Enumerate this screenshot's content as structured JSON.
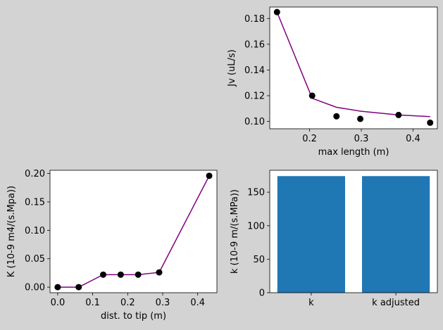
{
  "figure": {
    "background": "#d3d3d3"
  },
  "chart_data": [
    {
      "id": "top-right",
      "type": "line",
      "xlabel": "max length (m)",
      "ylabel": "Jv (uL/s)",
      "xlim": [
        0.123,
        0.447
      ],
      "ylim": [
        0.0943,
        0.1889
      ],
      "xticks": [
        0.2,
        0.3,
        0.4
      ],
      "xtick_labels": [
        "0.2",
        "0.3",
        "0.4"
      ],
      "yticks": [
        0.1,
        0.12,
        0.14,
        0.16,
        0.18
      ],
      "ytick_labels": [
        "0.10",
        "0.12",
        "0.14",
        "0.16",
        "0.18"
      ],
      "grid": false,
      "series": [
        {
          "kind": "scatter",
          "color": "#000000",
          "x": [
            0.137,
            0.205,
            0.252,
            0.298,
            0.372,
            0.433
          ],
          "y": [
            0.185,
            0.12,
            0.104,
            0.102,
            0.105,
            0.099
          ]
        },
        {
          "kind": "line",
          "color": "#800080",
          "x": [
            0.137,
            0.205,
            0.252,
            0.298,
            0.372,
            0.433
          ],
          "y": [
            0.185,
            0.118,
            0.111,
            0.108,
            0.105,
            0.1037
          ]
        }
      ]
    },
    {
      "id": "bottom-left",
      "type": "line",
      "xlabel": "dist. to tip (m)",
      "ylabel": "K (10-9 m4/(s.Mpa))",
      "xlim": [
        -0.022,
        0.455
      ],
      "ylim": [
        -0.0098,
        0.2057
      ],
      "xticks": [
        0.0,
        0.1,
        0.2,
        0.3,
        0.4
      ],
      "xtick_labels": [
        "0.0",
        "0.1",
        "0.2",
        "0.3",
        "0.4"
      ],
      "yticks": [
        0.0,
        0.05,
        0.1,
        0.15,
        0.2
      ],
      "ytick_labels": [
        "0.00",
        "0.05",
        "0.10",
        "0.15",
        "0.20"
      ],
      "grid": false,
      "series": [
        {
          "kind": "scatter",
          "color": "#000000",
          "x": [
            0.0,
            0.06,
            0.13,
            0.18,
            0.23,
            0.29,
            0.433
          ],
          "y": [
            0.0,
            0.0,
            0.022,
            0.022,
            0.022,
            0.026,
            0.196
          ]
        },
        {
          "kind": "line",
          "color": "#800080",
          "x": [
            0.0,
            0.06,
            0.13,
            0.18,
            0.23,
            0.29,
            0.433
          ],
          "y": [
            0.0,
            0.0,
            0.022,
            0.022,
            0.022,
            0.026,
            0.196
          ]
        }
      ]
    },
    {
      "id": "bottom-right",
      "type": "bar",
      "xlabel": "",
      "ylabel": "k (10-9 m/(s.MPa))",
      "categories": [
        "k",
        "k adjusted"
      ],
      "values": [
        174,
        174
      ],
      "color": "#1f77b4",
      "ylim": [
        0,
        182.7
      ],
      "yticks": [
        0,
        50,
        100,
        150
      ],
      "ytick_labels": [
        "0",
        "50",
        "100",
        "150"
      ],
      "grid": false
    }
  ]
}
